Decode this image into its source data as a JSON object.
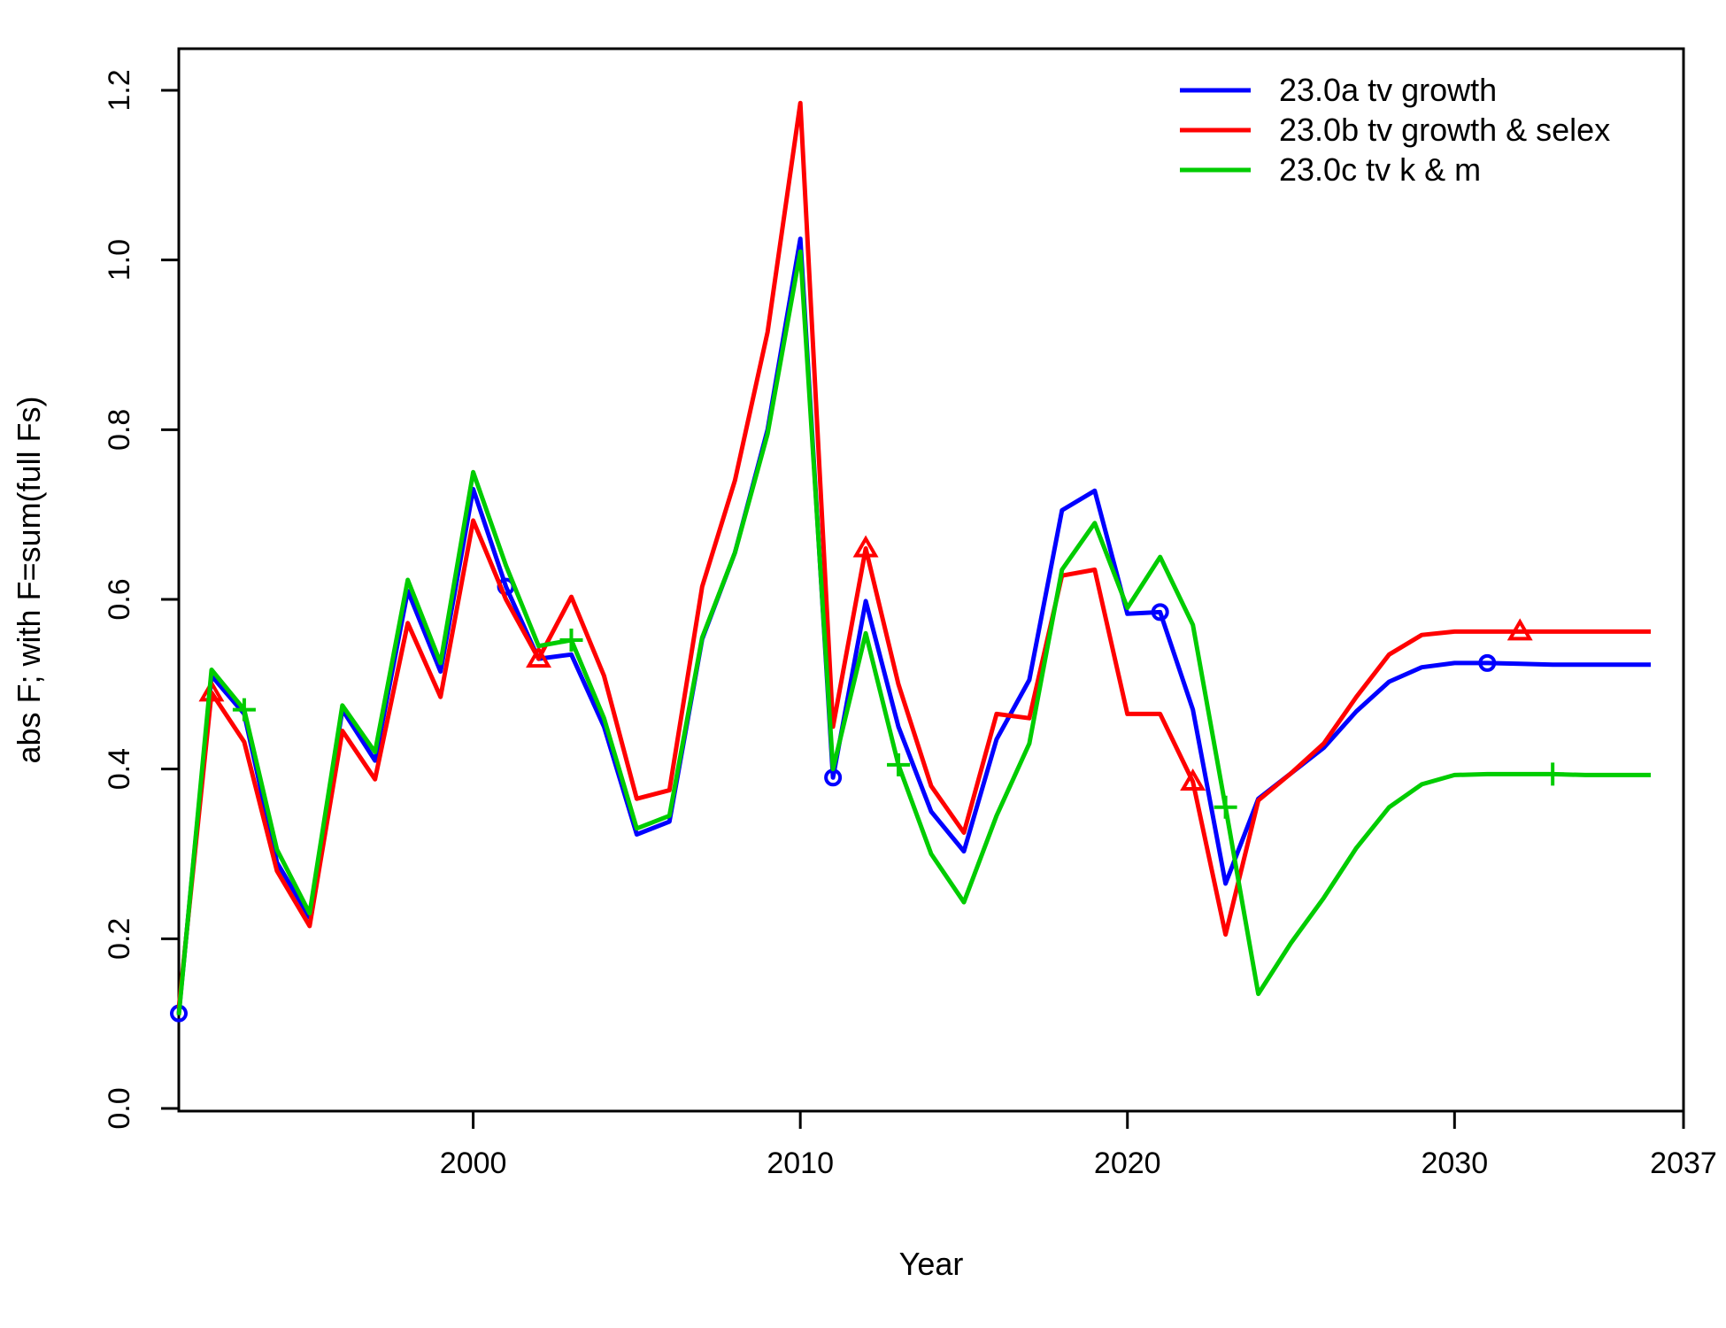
{
  "chart_data": {
    "type": "line",
    "title": "",
    "xlabel": "Year",
    "ylabel": "abs F; with F=sum(full Fs)",
    "xlim": [
      1991,
      2037
    ],
    "ylim": [
      0,
      1.2
    ],
    "x_ticks": [
      2000,
      2010,
      2020,
      2030,
      2037
    ],
    "y_ticks": [
      "0.0",
      "0.2",
      "0.4",
      "0.6",
      "0.8",
      "1.0",
      "1.2"
    ],
    "legend_position": "top-right",
    "grid": false,
    "x": [
      1991,
      1992,
      1993,
      1994,
      1995,
      1996,
      1997,
      1998,
      1999,
      2000,
      2001,
      2002,
      2003,
      2004,
      2005,
      2006,
      2007,
      2008,
      2009,
      2010,
      2011,
      2012,
      2013,
      2014,
      2015,
      2016,
      2017,
      2018,
      2019,
      2020,
      2021,
      2022,
      2023,
      2024,
      2025,
      2026,
      2027,
      2028,
      2029,
      2030,
      2031,
      2032,
      2033,
      2034,
      2035,
      2036
    ],
    "series": [
      {
        "name": "23.0a tv growth",
        "color": "#0000ff",
        "marker": "circle",
        "marker_x": [
          1991,
          2001,
          2011,
          2021,
          2031
        ],
        "values": [
          0.112,
          0.51,
          0.465,
          0.29,
          0.225,
          0.47,
          0.41,
          0.61,
          0.515,
          0.73,
          0.615,
          0.53,
          0.535,
          0.45,
          0.323,
          0.338,
          0.553,
          0.655,
          0.8,
          1.025,
          0.39,
          0.598,
          0.45,
          0.35,
          0.303,
          0.435,
          0.505,
          0.705,
          0.728,
          0.583,
          0.585,
          0.47,
          0.265,
          0.365,
          0.395,
          0.425,
          0.468,
          0.503,
          0.52,
          0.525,
          0.525,
          0.524,
          0.523,
          0.523,
          0.523,
          0.523
        ]
      },
      {
        "name": "23.0b tv growth & selex",
        "color": "#ff0000",
        "marker": "triangle",
        "marker_x": [
          1992,
          2002,
          2012,
          2022,
          2032
        ],
        "values": [
          0.118,
          0.49,
          0.432,
          0.28,
          0.215,
          0.445,
          0.388,
          0.572,
          0.485,
          0.693,
          0.6,
          0.53,
          0.603,
          0.51,
          0.365,
          0.375,
          0.615,
          0.74,
          0.915,
          1.185,
          0.45,
          0.66,
          0.5,
          0.38,
          0.325,
          0.465,
          0.46,
          0.628,
          0.635,
          0.465,
          0.465,
          0.385,
          0.205,
          0.363,
          0.395,
          0.43,
          0.485,
          0.535,
          0.558,
          0.562,
          0.562,
          0.562,
          0.562,
          0.562,
          0.562,
          0.562
        ]
      },
      {
        "name": "23.0c tv k & m",
        "color": "#00cc00",
        "marker": "plus",
        "marker_x": [
          1993,
          2003,
          2013,
          2023,
          2033
        ],
        "values": [
          0.11,
          0.517,
          0.47,
          0.305,
          0.23,
          0.475,
          0.42,
          0.623,
          0.525,
          0.75,
          0.64,
          0.545,
          0.552,
          0.46,
          0.33,
          0.345,
          0.555,
          0.655,
          0.795,
          1.01,
          0.4,
          0.56,
          0.405,
          0.3,
          0.243,
          0.345,
          0.43,
          0.635,
          0.69,
          0.59,
          0.65,
          0.57,
          0.355,
          0.135,
          0.195,
          0.248,
          0.307,
          0.355,
          0.382,
          0.393,
          0.394,
          0.394,
          0.394,
          0.393,
          0.393,
          0.393
        ]
      }
    ]
  }
}
